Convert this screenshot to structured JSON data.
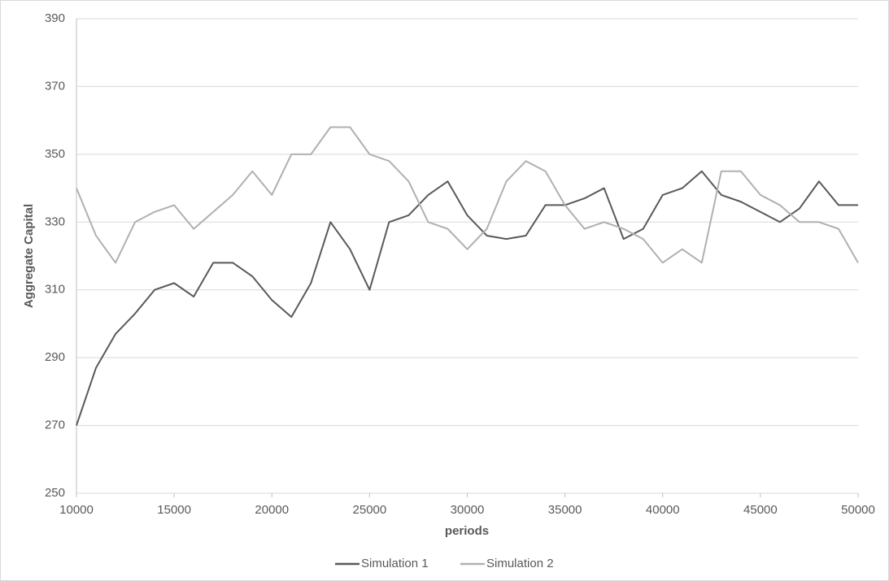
{
  "chart_data": {
    "type": "line",
    "x_label": "periods",
    "y_label": "Aggregate Capital",
    "x": [
      10000,
      11000,
      12000,
      13000,
      14000,
      15000,
      16000,
      17000,
      18000,
      19000,
      20000,
      21000,
      22000,
      23000,
      24000,
      25000,
      26000,
      27000,
      28000,
      29000,
      30000,
      31000,
      32000,
      33000,
      34000,
      35000,
      36000,
      37000,
      38000,
      39000,
      40000,
      41000,
      42000,
      43000,
      44000,
      45000,
      46000,
      47000,
      48000,
      49000,
      50000
    ],
    "series": [
      {
        "name": "Simulation 1",
        "color": "#595959",
        "values": [
          270,
          287,
          297,
          303,
          310,
          312,
          308,
          318,
          318,
          314,
          307,
          302,
          312,
          330,
          322,
          310,
          330,
          332,
          338,
          342,
          332,
          326,
          325,
          326,
          335,
          335,
          337,
          340,
          325,
          328,
          338,
          340,
          345,
          338,
          336,
          333,
          330,
          334,
          342,
          335,
          335
        ]
      },
      {
        "name": "Simulation 2",
        "color": "#b0b0b0",
        "values": [
          340,
          326,
          318,
          330,
          333,
          335,
          328,
          333,
          338,
          345,
          338,
          350,
          350,
          358,
          358,
          350,
          348,
          342,
          330,
          328,
          322,
          328,
          342,
          348,
          345,
          335,
          328,
          330,
          328,
          325,
          318,
          322,
          318,
          345,
          345,
          338,
          335,
          330,
          330,
          328,
          318
        ]
      }
    ],
    "xlim": [
      10000,
      50000
    ],
    "xticks": [
      10000,
      15000,
      20000,
      25000,
      30000,
      35000,
      40000,
      45000,
      50000
    ],
    "ylim": [
      250,
      390
    ],
    "yticks": [
      250,
      270,
      290,
      310,
      330,
      350,
      370,
      390
    ],
    "grid": true,
    "legend": "bottom"
  }
}
